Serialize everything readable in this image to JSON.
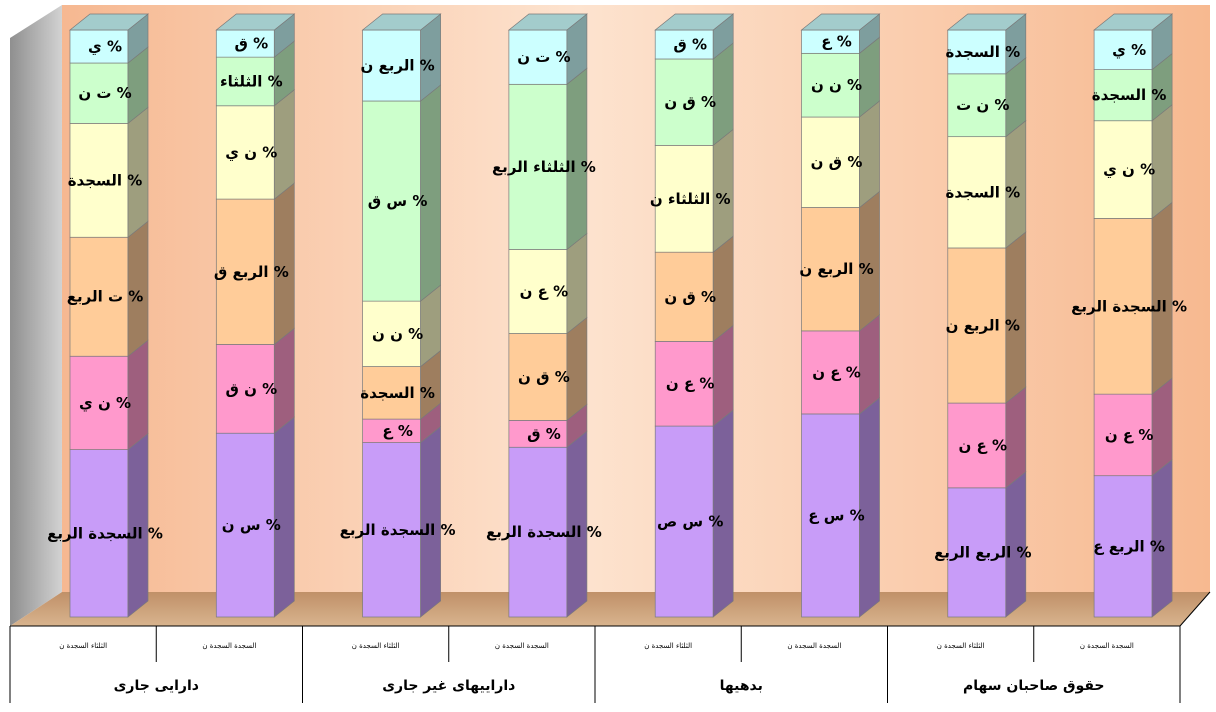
{
  "chart_data": {
    "type": "bar",
    "stacked": true,
    "three_d": true,
    "grid": false,
    "groups": [
      {
        "label": "دارایی جاری",
        "bars": [
          "b1",
          "b2"
        ]
      },
      {
        "label": "داراییهای غیر جاری",
        "bars": [
          "b3",
          "b4"
        ]
      },
      {
        "label": "بدهیها",
        "bars": [
          "b5",
          "b6"
        ]
      },
      {
        "label": "حقوق صاحبان سهام",
        "bars": [
          "b7",
          "b8"
        ]
      }
    ],
    "bars": [
      {
        "id": "b1",
        "sublabel": [
          "الثلثاء",
          "السجدة ن"
        ],
        "segments": [
          {
            "value": 29.4,
            "label": "% السجدة الربع"
          },
          {
            "value": 16.4,
            "label": "% ن ي"
          },
          {
            "value": 20.9,
            "label": "% ت الربع"
          },
          {
            "value": 20.0,
            "label": "% السجدة"
          },
          {
            "value": 10.6,
            "label": "% ت ن"
          },
          {
            "value": 5.8,
            "label": "% ي"
          }
        ]
      },
      {
        "id": "b2",
        "sublabel": [
          "السجدة",
          "السجدة ن"
        ],
        "segments": [
          {
            "value": 32.5,
            "label": "% س ن"
          },
          {
            "value": 15.7,
            "label": "% ن ق"
          },
          {
            "value": 25.7,
            "label": "% الربع ق"
          },
          {
            "value": 16.5,
            "label": "% ن ي"
          },
          {
            "value": 8.6,
            "label": "% الثلثاء"
          },
          {
            "value": 4.8,
            "label": "% ق"
          }
        ]
      },
      {
        "id": "b3",
        "sublabel": [
          "الثلثاء",
          "السجدة ن"
        ],
        "segments": [
          {
            "value": 31.2,
            "label": "% السجدة الربع"
          },
          {
            "value": 4.2,
            "label": "% ع"
          },
          {
            "value": 9.4,
            "label": "% السجدة"
          },
          {
            "value": 11.7,
            "label": "% ن ن"
          },
          {
            "value": 35.8,
            "label": "% س ق"
          },
          {
            "value": 12.7,
            "label": "% الربع ن"
          }
        ]
      },
      {
        "id": "b4",
        "sublabel": [
          "السجدة",
          "السجدة ن"
        ],
        "segments": [
          {
            "value": 29.7,
            "label": "% السجدة الربع"
          },
          {
            "value": 4.7,
            "label": "% ق"
          },
          {
            "value": 15.2,
            "label": "% ق ن"
          },
          {
            "value": 14.7,
            "label": "% ع ن"
          },
          {
            "value": 28.9,
            "label": "% الثلثاء الربع"
          },
          {
            "value": 9.5,
            "label": "% ت ن"
          }
        ]
      },
      {
        "id": "b5",
        "sublabel": [
          "الثلثاء",
          "السجدة ن"
        ],
        "segments": [
          {
            "value": 33.6,
            "label": "% س ص"
          },
          {
            "value": 14.9,
            "label": "% ع ن"
          },
          {
            "value": 15.7,
            "label": "% ق ن"
          },
          {
            "value": 18.8,
            "label": "% الثلثاء ن"
          },
          {
            "value": 15.2,
            "label": "% ق ن"
          },
          {
            "value": 5.1,
            "label": "% ق"
          }
        ]
      },
      {
        "id": "b6",
        "sublabel": [
          "السجدة",
          "السجدة ن"
        ],
        "segments": [
          {
            "value": 35.7,
            "label": "% س ع"
          },
          {
            "value": 14.6,
            "label": "% ع ن"
          },
          {
            "value": 21.7,
            "label": "% الربع ن"
          },
          {
            "value": 15.9,
            "label": "% ق ن"
          },
          {
            "value": 11.2,
            "label": "% ن ن"
          },
          {
            "value": 4.1,
            "label": "% ع"
          }
        ]
      },
      {
        "id": "b7",
        "sublabel": [
          "الثلثاء",
          "السجدة ن"
        ],
        "segments": [
          {
            "value": 22.4,
            "label": "% الربع الربع"
          },
          {
            "value": 14.7,
            "label": "% ع ن"
          },
          {
            "value": 26.9,
            "label": "% الربع ن"
          },
          {
            "value": 19.3,
            "label": "% السجدة"
          },
          {
            "value": 10.9,
            "label": "% ن ت"
          },
          {
            "value": 7.6,
            "label": "% السجدة"
          }
        ]
      },
      {
        "id": "b8",
        "sublabel": [
          "السجدة",
          "السجدة ن"
        ],
        "segments": [
          {
            "value": 24.6,
            "label": "% الربع ع"
          },
          {
            "value": 14.2,
            "label": "% ع ن"
          },
          {
            "value": 30.6,
            "label": "% السجدة الربع"
          },
          {
            "value": 17.0,
            "label": "% ن ي"
          },
          {
            "value": 8.9,
            "label": "% السجدة"
          },
          {
            "value": 6.9,
            "label": "% ي"
          }
        ]
      }
    ],
    "segment_colors": [
      "#c89cf8",
      "#ff99cc",
      "#ffcc99",
      "#ffffcc",
      "#ccffcc",
      "#ccffff"
    ],
    "wall_color": "#f9c6a0",
    "floor_color": "#c8a27c"
  }
}
